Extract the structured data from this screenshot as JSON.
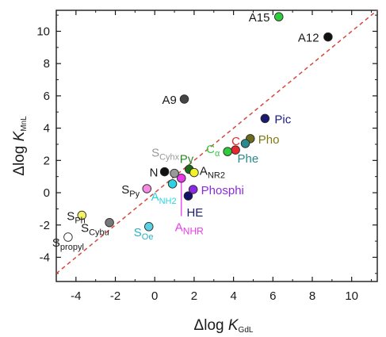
{
  "chart_data": {
    "type": "scatter",
    "xlabel": {
      "delta": "Δlog ",
      "K": "K",
      "sub": "GdL"
    },
    "ylabel": {
      "delta": "Δlog ",
      "K": "K",
      "sub": "MnL"
    },
    "xlim": [
      -5,
      11.3
    ],
    "ylim": [
      -5.5,
      11.3
    ],
    "xticks": [
      -4,
      -2,
      0,
      2,
      4,
      6,
      8,
      10
    ],
    "yticks": [
      -4,
      -2,
      0,
      2,
      4,
      6,
      8,
      10
    ],
    "identity_line": {
      "style": "dashed",
      "color": "#d9473f"
    },
    "points": [
      {
        "x": 6.3,
        "y": 10.9,
        "fill": "#2ecc3a",
        "label": {
          "main": "A15",
          "sub": "",
          "color": "#1a1a1a",
          "dx": -38,
          "dy": 6
        }
      },
      {
        "x": 8.8,
        "y": 9.65,
        "fill": "#111111",
        "label": {
          "main": "A12",
          "sub": "",
          "color": "#1a1a1a",
          "dx": -38,
          "dy": 6
        }
      },
      {
        "x": 1.5,
        "y": 5.8,
        "fill": "#444444",
        "label": {
          "main": "A9",
          "sub": "",
          "color": "#1a1a1a",
          "dx": -28,
          "dy": 6
        }
      },
      {
        "x": 5.6,
        "y": 4.6,
        "fill": "#1a1a6e",
        "label": {
          "main": "Pic",
          "sub": "",
          "color": "#1a1a8c",
          "dx": 12,
          "dy": 6
        }
      },
      {
        "x": 4.1,
        "y": 2.65,
        "fill": "#e8262e",
        "label": {
          "main": "C",
          "sub": "",
          "color": "#e8262e",
          "dx": -5,
          "dy": -6
        }
      },
      {
        "x": 4.85,
        "y": 3.35,
        "fill": "#6b6b1a",
        "label": {
          "main": "Pho",
          "sub": "",
          "color": "#7d7a10",
          "dx": 10,
          "dy": 6
        }
      },
      {
        "x": 3.7,
        "y": 2.55,
        "fill": "#2ecc3a",
        "label": {
          "main": "C",
          "sub": "α",
          "color": "#2ecc3a",
          "dx": -27,
          "dy": 2
        }
      },
      {
        "x": 4.6,
        "y": 3.05,
        "fill": "#2a8a8a",
        "label": {
          "main": "Phe",
          "sub": "",
          "color": "#2a8a8a",
          "dx": -10,
          "dy": 24
        }
      },
      {
        "x": 1.75,
        "y": 1.45,
        "fill": "#1a6b1a",
        "label": {
          "main": "Py",
          "sub": "",
          "color": "#2a8a2a",
          "dx": -12,
          "dy": -8
        }
      },
      {
        "x": 2.0,
        "y": 1.25,
        "fill": "#f2f22a",
        "label": {
          "main": "A",
          "sub": "NR2",
          "color": "#1a1a1a",
          "dx": 7,
          "dy": 3
        }
      },
      {
        "x": 0.5,
        "y": 1.3,
        "fill": "#111111",
        "label": {
          "main": "N",
          "sub": "",
          "color": "#1a1a1a",
          "dx": -19,
          "dy": 6
        }
      },
      {
        "x": 1.0,
        "y": 1.2,
        "fill": "#999999",
        "label": {
          "main": "S",
          "sub": "Cyhx",
          "color": "#999999",
          "dx": -29,
          "dy": -21
        }
      },
      {
        "x": 1.35,
        "y": 0.9,
        "fill": "#e838e8",
        "label": {
          "main": "",
          "sub": "",
          "color": "#1a1a1a",
          "dx": 0,
          "dy": 0
        }
      },
      {
        "x": 0.9,
        "y": 0.55,
        "fill": "#2ad4e0",
        "label": {
          "main": "A",
          "sub": "NH2",
          "color": "#2ad4e0",
          "dx": -27,
          "dy": 21
        }
      },
      {
        "x": -0.4,
        "y": 0.25,
        "fill": "#f58ae0",
        "label": {
          "main": "S",
          "sub": "Py",
          "color": "#1a1a1a",
          "dx": -32,
          "dy": 6
        }
      },
      {
        "x": 1.95,
        "y": 0.2,
        "fill": "#8a2be2",
        "label": {
          "main": "Phosphi",
          "sub": "",
          "color": "#8a2be2",
          "dx": 10,
          "dy": 6
        }
      },
      {
        "x": 1.7,
        "y": -0.2,
        "fill": "#111166",
        "label": {
          "main": "HE",
          "sub": "",
          "color": "#1a1a6e",
          "dx": -2,
          "dy": 26
        }
      },
      {
        "x": -3.7,
        "y": -1.4,
        "fill": "#f5f06a",
        "label": {
          "main": "S",
          "sub": "Ph",
          "color": "#1a1a1a",
          "dx": -19,
          "dy": 6
        }
      },
      {
        "x": -2.3,
        "y": -1.85,
        "fill": "#777777",
        "label": {
          "main": "S",
          "sub": "Cybu",
          "color": "#1a1a1a",
          "dx": -36,
          "dy": 12
        }
      },
      {
        "x": -0.3,
        "y": -2.1,
        "fill": "#5ad0e0",
        "label": {
          "main": "S",
          "sub": "Oe",
          "color": "#2ab0c0",
          "dx": -19,
          "dy": 12
        }
      },
      {
        "x": -4.4,
        "y": -2.75,
        "fill": "#ffffff",
        "label": {
          "main": "S",
          "sub": "propyl",
          "color": "#1a1a1a",
          "dx": -20,
          "dy": 12
        }
      }
    ],
    "annotation": {
      "x": 1.35,
      "y_from": 0.75,
      "y_to": -1.45,
      "main": "A",
      "sub": "NHR",
      "color": "#e838e8"
    }
  }
}
